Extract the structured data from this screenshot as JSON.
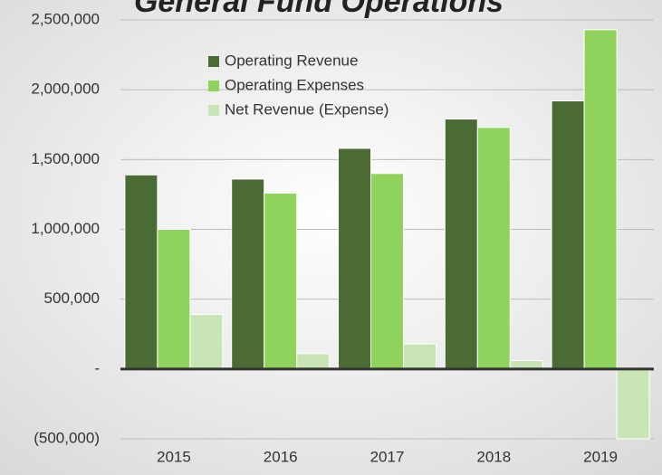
{
  "chart_data": {
    "type": "bar",
    "title": "General Fund Operations",
    "categories": [
      "2015",
      "2016",
      "2017",
      "2018",
      "2019"
    ],
    "series": [
      {
        "name": "Operating Revenue",
        "color": "#4b6b35",
        "values": [
          1390000,
          1360000,
          1580000,
          1790000,
          1920000
        ]
      },
      {
        "name": "Operating Expenses",
        "color": "#90d35c",
        "values": [
          1000000,
          1260000,
          1400000,
          1730000,
          2430000
        ]
      },
      {
        "name": "Net Revenue (Expense)",
        "color": "#c9e5b6",
        "values": [
          390000,
          110000,
          180000,
          60000,
          -500000
        ]
      }
    ],
    "ylim": [
      -500000,
      2500000
    ],
    "yticks": [
      {
        "value": -500000,
        "label": "(500,000)"
      },
      {
        "value": 0,
        "label": "-"
      },
      {
        "value": 500000,
        "label": "500,000"
      },
      {
        "value": 1000000,
        "label": "1,000,000"
      },
      {
        "value": 1500000,
        "label": "1,500,000"
      },
      {
        "value": 2000000,
        "label": "2,000,000"
      },
      {
        "value": 2500000,
        "label": "2,500,000"
      }
    ],
    "grid": true
  }
}
